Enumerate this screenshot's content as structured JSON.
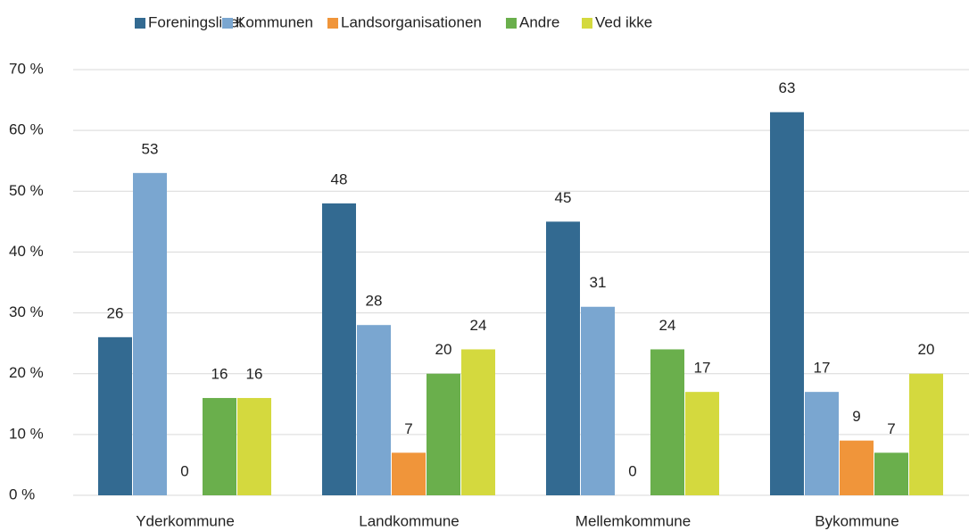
{
  "chart_data": {
    "type": "bar",
    "categories": [
      "Yderkommune",
      "Landkommune",
      "Mellemkommune",
      "Bykommune"
    ],
    "series": [
      {
        "name": "Foreningslivet",
        "color": "#336a91",
        "values": [
          26,
          48,
          45,
          63
        ]
      },
      {
        "name": "Kommunen",
        "color": "#7aa6d0",
        "values": [
          53,
          28,
          31,
          17
        ]
      },
      {
        "name": "Landsorganisationen",
        "color": "#f0953a",
        "values": [
          0,
          7,
          0,
          9
        ]
      },
      {
        "name": "Andre",
        "color": "#6aaf4c",
        "values": [
          16,
          20,
          24,
          7
        ]
      },
      {
        "name": "Ved ikke",
        "color": "#d4d93e",
        "values": [
          16,
          24,
          17,
          20
        ]
      }
    ],
    "ylim": [
      0,
      70
    ],
    "yticks": [
      {
        "value": 0,
        "label": "0 %"
      },
      {
        "value": 10,
        "label": "10 %"
      },
      {
        "value": 20,
        "label": "20 %"
      },
      {
        "value": 30,
        "label": "30 %"
      },
      {
        "value": 40,
        "label": "40 %"
      },
      {
        "value": 50,
        "label": "50 %"
      },
      {
        "value": 60,
        "label": "60 %"
      },
      {
        "value": 70,
        "label": "70 %"
      }
    ],
    "grid": true,
    "legend": "top"
  }
}
